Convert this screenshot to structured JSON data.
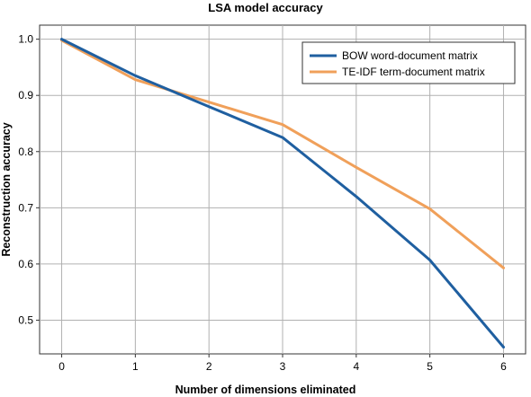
{
  "chart_data": {
    "type": "line",
    "title": "LSA model accuracy",
    "xlabel": "Number of dimensions eliminated",
    "ylabel": "Reconstruction accuracy",
    "xlim": [
      -0.3,
      6.3
    ],
    "ylim": [
      0.44,
      1.025
    ],
    "xticks": [
      0,
      1,
      2,
      3,
      4,
      5,
      6
    ],
    "yticks": [
      0.5,
      0.6,
      0.7,
      0.8,
      0.9,
      1.0
    ],
    "ytick_labels": [
      "0.5",
      "0.6",
      "0.7",
      "0.8",
      "0.9",
      "1.0"
    ],
    "grid": true,
    "legend_position": "top-right",
    "series": [
      {
        "name": "BOW word-document matrix",
        "color": "#1f5fa0",
        "x": [
          0,
          1,
          2,
          3,
          3.6,
          4,
          5,
          6
        ],
        "y": [
          1.0,
          0.935,
          0.88,
          0.825,
          0.762,
          0.72,
          0.607,
          0.452
        ]
      },
      {
        "name": "TE-IDF term-document matrix",
        "color": "#f0a05a",
        "x": [
          0,
          1,
          2,
          3,
          4,
          5,
          6
        ],
        "y": [
          0.998,
          0.928,
          0.888,
          0.848,
          0.772,
          0.698,
          0.593
        ]
      }
    ]
  }
}
